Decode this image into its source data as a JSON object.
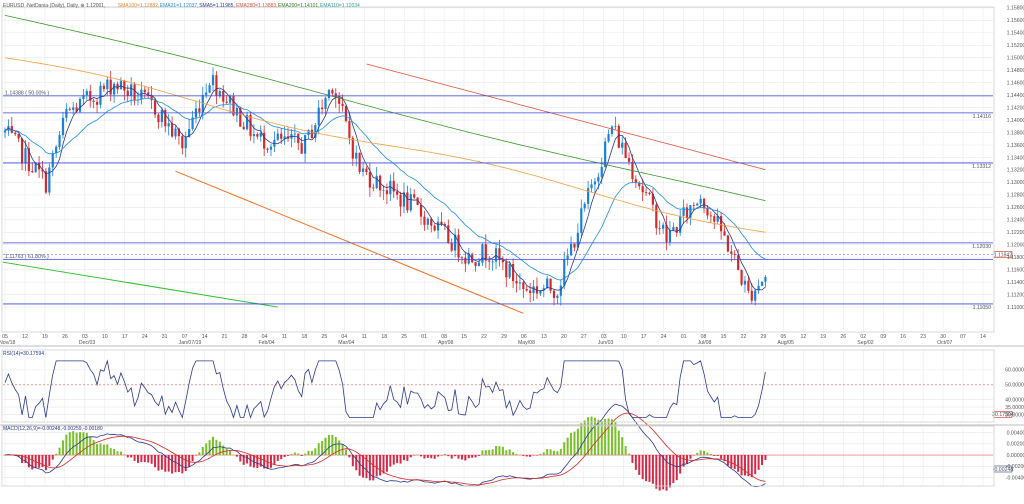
{
  "chart_data": {
    "type": "candlestick",
    "header": {
      "symbol": "EURUSD",
      "parts": [
        {
          "text": "EURUSD ·NetDania·(Daily), Daily, ⊕ 1.12001,",
          "color": "#555555"
        },
        {
          "text": "SMA100=1.12882,",
          "color": "#e08a2a"
        },
        {
          "text": "EMA21=1.12037,",
          "color": "#1f8ee0"
        },
        {
          "text": "SMA5=1.11985,",
          "color": "#2a3a8a"
        },
        {
          "text": "EMA280=1.13883,",
          "color": "#e0503a"
        },
        {
          "text": "EMA200=1.14101,",
          "color": "#3a7a2a"
        },
        {
          "text": "EMA110=1.12034",
          "color": "#2fa0a0"
        }
      ]
    },
    "price_axis": {
      "min": 1.106,
      "max": 1.1575,
      "ticks": [
        "1.15800",
        "1.15600",
        "1.15400",
        "1.15200",
        "1.15000",
        "1.14800",
        "1.14600",
        "1.14400",
        "1.14200",
        "1.14000",
        "1.13800",
        "1.13600",
        "1.13400",
        "1.13200",
        "1.13000",
        "1.12800",
        "1.12600",
        "1.12400",
        "1.12200",
        "1.12000",
        "1.11800",
        "1.11600",
        "1.11400",
        "1.11200",
        "1.11000"
      ],
      "current_price": "1.11842",
      "level_labels": [
        "1.14116",
        "1.13312",
        "1.12030",
        "1.11050"
      ]
    },
    "annotations": [
      {
        "text": "1.14388 ( 50.00% )",
        "price": 1.14388
      },
      {
        "text": "1.11763 ( 61.80% )",
        "price": 1.11763
      }
    ],
    "date_labels": [
      "05",
      "12",
      "19",
      "26",
      "03",
      "10",
      "17",
      "24",
      "31",
      "07",
      "14",
      "21",
      "28",
      "04",
      "11",
      "18",
      "25",
      "04",
      "11",
      "18",
      "25",
      "01",
      "08",
      "15",
      "22",
      "29",
      "06",
      "13",
      "20",
      "27",
      "03",
      "10",
      "17",
      "24",
      "01",
      "08",
      "15",
      "22",
      "29",
      "05",
      "12",
      "19",
      "26",
      "02",
      "09",
      "16",
      "23",
      "30",
      "07",
      "14"
    ],
    "month_labels": [
      {
        "text": "Nov/18",
        "index": 0
      },
      {
        "text": "Dec/03",
        "index": 4
      },
      {
        "text": "Jan/07/19",
        "index": 9
      },
      {
        "text": "Feb/04",
        "index": 13
      },
      {
        "text": "Mar/04",
        "index": 17
      },
      {
        "text": "Apr/08",
        "index": 22
      },
      {
        "text": "May/08",
        "index": 26
      },
      {
        "text": "Jun/03",
        "index": 30
      },
      {
        "text": "Jul/08",
        "index": 35
      },
      {
        "text": "Aug/05",
        "index": 39
      },
      {
        "text": "Sep/02",
        "index": 43
      },
      {
        "text": "Oct/07",
        "index": 47
      }
    ],
    "rsi": {
      "label": "RSI(14)=30.17594",
      "ticks": [
        "60.00000",
        "50.00000",
        "40.00000",
        "35.00000",
        "30.00000"
      ],
      "current": "30.17594",
      "min": 25,
      "max": 72
    },
    "macd": {
      "label": "MACD(12,26,9)=-0.00248,-0.00259,-0.00180",
      "ticks": [
        "0.00400",
        "0.00200",
        "0.00000",
        "-0.00200",
        "-0.00400"
      ],
      "current": "-0.00248",
      "min": -0.0055,
      "max": 0.0048
    },
    "colors": {
      "bull": "#1a82d6",
      "bear": "#d42a2a",
      "grid": "#e6e6e6",
      "sma5": "#2a3a8a",
      "ema21": "#1f8ee0",
      "ema110": "#e0503a",
      "ema280": "#3a9a2a",
      "sma100": "#f0a040",
      "chan_orange": "#f07020",
      "chan_green": "#30c030",
      "hline": "#3a4ad8"
    }
  }
}
